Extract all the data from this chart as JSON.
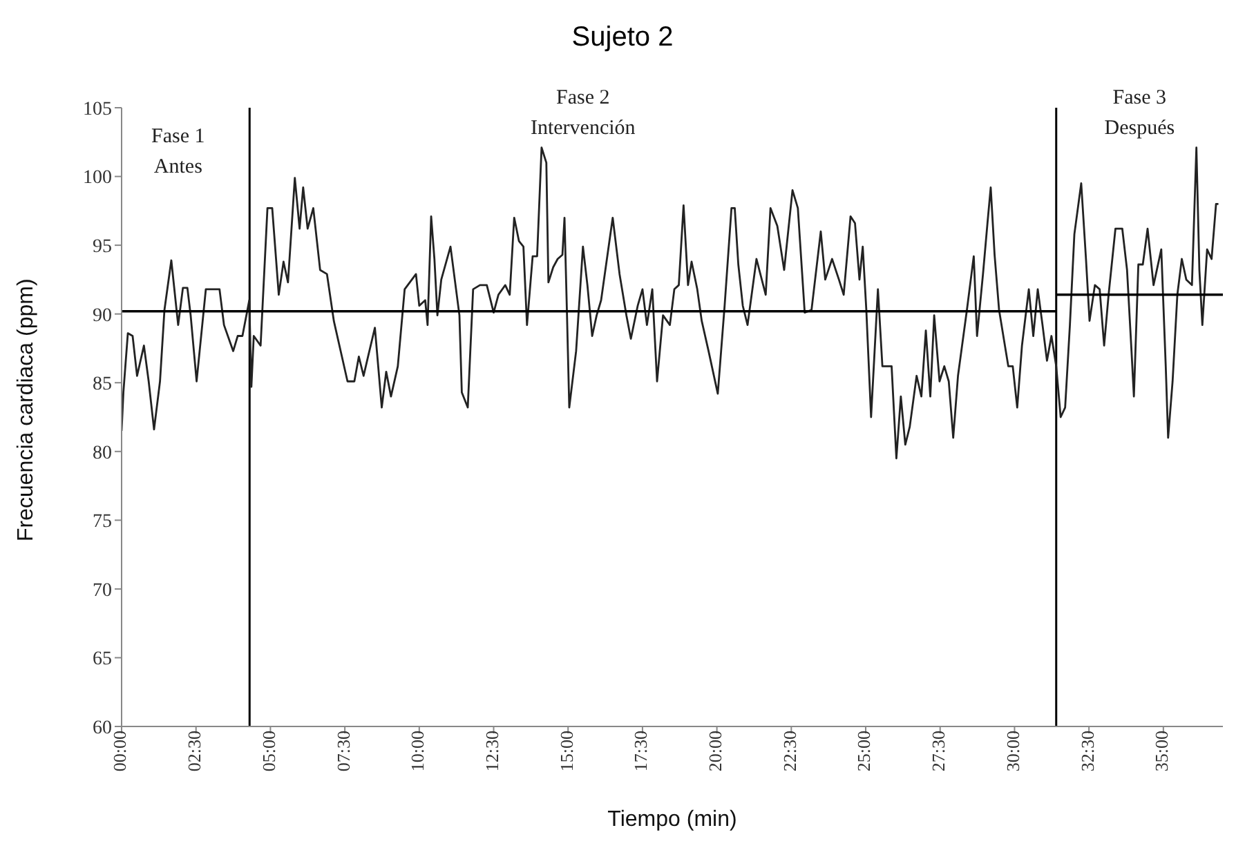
{
  "chart_data": {
    "type": "line",
    "title": "Sujeto 2",
    "xlabel": "Tiempo (min)",
    "ylabel": "Frecuencia cardiaca (ppm)",
    "annotations": [
      "Fase 1\nAntes",
      "Fase 2\nIntervención",
      "Fase 3\nDespués"
    ],
    "xlim": [
      0,
      37
    ],
    "xticks": [
      {
        "value": 0,
        "label": "00:00"
      },
      {
        "value": 2.5,
        "label": "02:30"
      },
      {
        "value": 5,
        "label": "05:00"
      },
      {
        "value": 7.5,
        "label": "07:30"
      },
      {
        "value": 10,
        "label": "10:00"
      },
      {
        "value": 12.5,
        "label": "12:30"
      },
      {
        "value": 15,
        "label": "15:00"
      },
      {
        "value": 17.5,
        "label": "17:30"
      },
      {
        "value": 20,
        "label": "20:00"
      },
      {
        "value": 22.5,
        "label": "22:30"
      },
      {
        "value": 25,
        "label": "25:00"
      },
      {
        "value": 27.5,
        "label": "27:30"
      },
      {
        "value": 30,
        "label": "30:00"
      },
      {
        "value": 32.5,
        "label": "32:30"
      },
      {
        "value": 35,
        "label": "35:00"
      }
    ],
    "ylim": [
      60,
      105
    ],
    "yticks": [
      60,
      65,
      70,
      75,
      80,
      85,
      90,
      95,
      100,
      105
    ],
    "grid": false,
    "legend": false,
    "marker": "none",
    "line_style": "solid",
    "ref_lines": [
      {
        "axis": "x",
        "value": 4.3,
        "color": "#000000"
      },
      {
        "axis": "x",
        "value": 31.4,
        "color": "#000000"
      }
    ],
    "series": [
      {
        "color": "#222222",
        "x": [
          0,
          0.06,
          0.21,
          0.37,
          0.52,
          0.75,
          0.91,
          1.09,
          1.29,
          1.44,
          1.67,
          1.9,
          2.06,
          2.21,
          2.32,
          2.52,
          2.83,
          3.29,
          3.44,
          3.75,
          3.9,
          4.06,
          4.29,
          4.36,
          4.44,
          4.67,
          4.9,
          5.06,
          5.28,
          5.44,
          5.59,
          5.82,
          5.98,
          6.1,
          6.25,
          6.44,
          6.67,
          6.9,
          7.13,
          7.59,
          7.82,
          7.97,
          8.13,
          8.28,
          8.51,
          8.74,
          8.89,
          9.05,
          9.28,
          9.51,
          9.89,
          10.0,
          10.2,
          10.28,
          10.4,
          10.51,
          10.61,
          10.74,
          11.05,
          11.35,
          11.43,
          11.63,
          11.81,
          12.04,
          12.27,
          12.5,
          12.66,
          12.89,
          13.04,
          13.19,
          13.35,
          13.5,
          13.62,
          13.81,
          13.96,
          14.11,
          14.27,
          14.34,
          14.5,
          14.65,
          14.81,
          14.88,
          14.96,
          15.04,
          15.27,
          15.5,
          15.65,
          15.81,
          15.96,
          16.11,
          16.5,
          16.73,
          16.96,
          17.11,
          17.34,
          17.5,
          17.65,
          17.83,
          17.99,
          18.19,
          18.42,
          18.57,
          18.72,
          18.88,
          19.03,
          19.15,
          19.34,
          19.49,
          19.72,
          20.03,
          20.26,
          20.49,
          20.6,
          20.72,
          20.87,
          21.03,
          21.33,
          21.64,
          21.8,
          22.03,
          22.26,
          22.54,
          22.72,
          22.95,
          23.18,
          23.49,
          23.64,
          23.87,
          24.1,
          24.26,
          24.49,
          24.64,
          24.79,
          24.9,
          25.02,
          25.18,
          25.41,
          25.56,
          25.87,
          26.03,
          26.18,
          26.33,
          26.48,
          26.71,
          26.87,
          27.02,
          27.17,
          27.3,
          27.48,
          27.64,
          27.79,
          27.94,
          28.1,
          28.4,
          28.63,
          28.74,
          28.94,
          29.09,
          29.2,
          29.33,
          29.48,
          29.79,
          29.94,
          30.09,
          30.25,
          30.48,
          30.63,
          30.78,
          30.94,
          31.09,
          31.24,
          31.4,
          31.55,
          31.7,
          31.86,
          32.01,
          32.24,
          32.4,
          32.52,
          32.7,
          32.86,
          33.01,
          33.16,
          33.39,
          33.62,
          33.78,
          33.93,
          34.01,
          34.16,
          34.31,
          34.47,
          34.67,
          34.93,
          35.08,
          35.16,
          35.31,
          35.47,
          35.62,
          35.77,
          35.96,
          36.11,
          36.21,
          36.31,
          36.47,
          36.62,
          36.77,
          36.85
        ],
        "values": [
          81.5,
          84.3,
          88.6,
          88.4,
          85.5,
          87.7,
          85.1,
          81.6,
          85.1,
          90.3,
          93.9,
          89.2,
          91.9,
          91.9,
          89.9,
          85.1,
          91.8,
          91.8,
          89.2,
          87.3,
          88.4,
          88.4,
          91.0,
          84.7,
          88.4,
          87.7,
          97.7,
          97.7,
          91.4,
          93.8,
          92.3,
          99.9,
          96.2,
          99.2,
          96.2,
          97.7,
          93.2,
          92.9,
          89.5,
          85.1,
          85.1,
          86.9,
          85.5,
          86.9,
          89.0,
          83.2,
          85.8,
          84.0,
          86.2,
          91.8,
          92.9,
          90.6,
          91.0,
          89.2,
          97.1,
          94.0,
          89.9,
          92.5,
          94.9,
          89.9,
          84.3,
          83.2,
          91.8,
          92.1,
          92.1,
          90.1,
          91.4,
          92.1,
          91.4,
          97.0,
          95.3,
          94.9,
          89.2,
          94.2,
          94.2,
          102.1,
          101.0,
          92.3,
          93.4,
          94.0,
          94.3,
          97.0,
          90.3,
          83.2,
          87.3,
          94.9,
          92.1,
          88.4,
          89.9,
          91.0,
          97.0,
          92.9,
          89.9,
          88.2,
          90.6,
          91.8,
          89.2,
          91.8,
          85.1,
          89.9,
          89.2,
          91.8,
          92.1,
          97.9,
          92.1,
          93.8,
          91.8,
          89.5,
          87.3,
          84.2,
          90.6,
          97.7,
          97.7,
          93.6,
          90.6,
          89.2,
          94.0,
          91.4,
          97.7,
          96.4,
          93.2,
          99.0,
          97.7,
          90.1,
          90.3,
          96.0,
          92.5,
          94.0,
          92.5,
          91.4,
          97.1,
          96.6,
          92.5,
          94.9,
          90.3,
          82.5,
          91.8,
          86.2,
          86.2,
          79.5,
          84.0,
          80.5,
          81.8,
          85.5,
          84.0,
          88.8,
          84.0,
          89.9,
          85.1,
          86.2,
          85.1,
          81.0,
          85.5,
          90.3,
          94.2,
          88.4,
          92.9,
          96.6,
          99.2,
          94.3,
          90.3,
          86.2,
          86.2,
          83.2,
          87.7,
          91.8,
          88.4,
          91.8,
          89.2,
          86.6,
          88.4,
          86.2,
          82.5,
          83.2,
          89.2,
          95.8,
          99.5,
          94.0,
          89.5,
          92.1,
          91.8,
          87.7,
          91.4,
          96.2,
          96.2,
          93.2,
          87.3,
          84.0,
          93.6,
          93.6,
          96.2,
          92.1,
          94.7,
          86.2,
          81.0,
          85.1,
          91.4,
          94.0,
          92.5,
          92.1,
          102.1,
          93.2,
          89.2,
          94.7,
          94.0,
          98.0,
          98.0
        ]
      },
      {
        "color": "#000000",
        "x": [
          0,
          31.4
        ],
        "values": [
          90.2,
          90.2
        ]
      },
      {
        "color": "#000000",
        "x": [
          31.4,
          37
        ],
        "values": [
          91.4,
          91.4
        ]
      }
    ]
  }
}
